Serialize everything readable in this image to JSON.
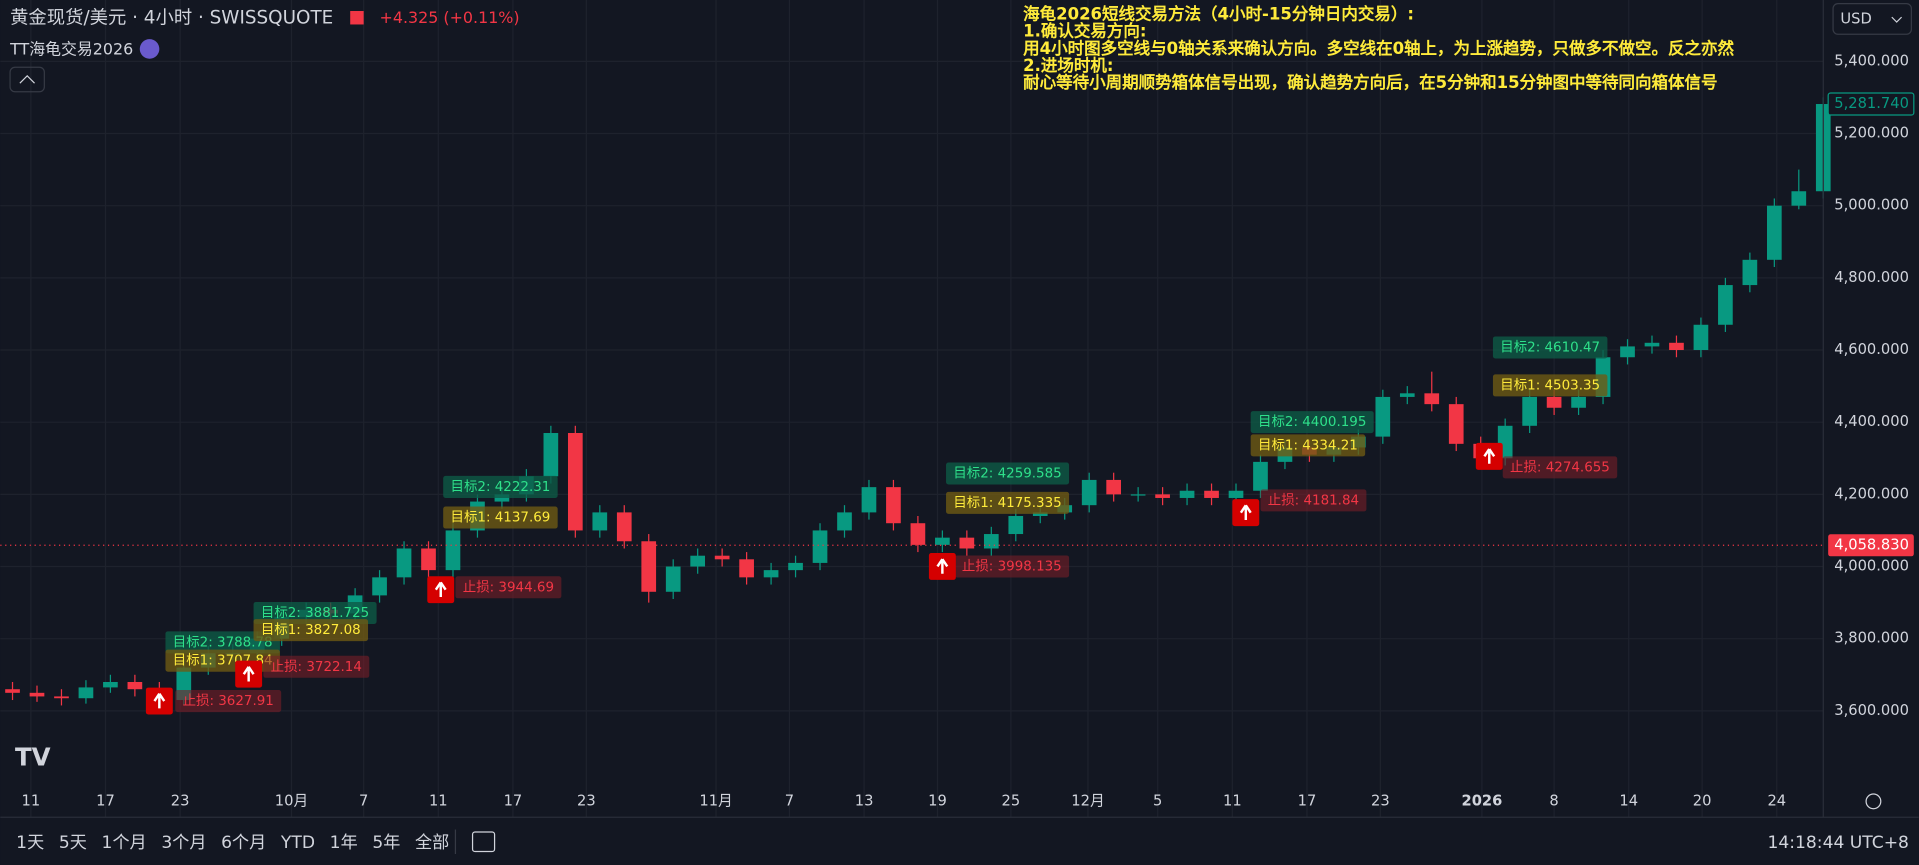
{
  "header": {
    "title": "黄金现货/美元 · 4小时 · SWISSQUOTE",
    "change": "+4.325 (+0.11%)",
    "indicator": "TT海龟交易2026",
    "currency": "USD"
  },
  "note": [
    "海龟2026短线交易方法（4小时-15分钟日内交易）:",
    "1.确认交易方向:",
    "用4小时图多空线与0轴关系来确认方向。多空线在0轴上，为上涨趋势，只做多不做空。反之亦然",
    "2.进场时机:",
    "耐心等待小周期顺势箱体信号出现，确认趋势方向后，在5分钟和15分钟图中等待同向箱体信号"
  ],
  "toolbar": {
    "ranges": [
      "1天",
      "5天",
      "1个月",
      "3个月",
      "6个月",
      "YTD",
      "1年",
      "5年",
      "全部"
    ],
    "time": "14:18:44 UTC+8"
  },
  "chart_data": {
    "type": "candlestick",
    "x": [
      1,
      3,
      5,
      7,
      9,
      11,
      13,
      15,
      17,
      19,
      21,
      23,
      25,
      27,
      29,
      31,
      33,
      35,
      37,
      39,
      41,
      43,
      45,
      47,
      49,
      51,
      53,
      55,
      57,
      59,
      61,
      63,
      65,
      67,
      69,
      71,
      73,
      75,
      77,
      79,
      81,
      83,
      85,
      87,
      89,
      91,
      93,
      95,
      97,
      99,
      101,
      103,
      105,
      107,
      109,
      111,
      113,
      115,
      117,
      119,
      121,
      123,
      125,
      127,
      129,
      131,
      133,
      135,
      137,
      139,
      141,
      143,
      145,
      147,
      149
    ],
    "open": [
      3660,
      3650,
      3640,
      3635,
      3665,
      3680,
      3660,
      3630,
      3720,
      3760,
      3760,
      3800,
      3860,
      3880,
      3870,
      3920,
      3970,
      4050,
      3990,
      4100,
      4180,
      4200,
      4250,
      4370,
      4100,
      4150,
      4070,
      3930,
      4000,
      4030,
      4020,
      3970,
      3990,
      4010,
      4100,
      4150,
      4220,
      4120,
      4060,
      4080,
      4050,
      4090,
      4140,
      4150,
      4170,
      4240,
      4200,
      4200,
      4190,
      4210,
      4190,
      4210,
      4290,
      4330,
      4310,
      4330,
      4360,
      4470,
      4480,
      4450,
      4340,
      4300,
      4390,
      4470,
      4440,
      4470,
      4580,
      4610,
      4620,
      4600,
      4670,
      4780,
      4850,
      5000,
      5040
    ],
    "high": [
      3680,
      3670,
      3660,
      3685,
      3700,
      3700,
      3680,
      3740,
      3780,
      3785,
      3820,
      3880,
      3900,
      3900,
      3940,
      3990,
      4070,
      4070,
      4120,
      4200,
      4220,
      4270,
      4390,
      4390,
      4170,
      4170,
      4090,
      4020,
      4050,
      4050,
      4040,
      4010,
      4030,
      4120,
      4170,
      4240,
      4240,
      4140,
      4100,
      4100,
      4110,
      4160,
      4170,
      4190,
      4260,
      4260,
      4220,
      4220,
      4230,
      4230,
      4230,
      4310,
      4350,
      4350,
      4350,
      4380,
      4490,
      4500,
      4540,
      4470,
      4360,
      4410,
      4490,
      4490,
      4490,
      4600,
      4630,
      4640,
      4640,
      4690,
      4800,
      4870,
      5020,
      5100,
      5300
    ],
    "low": [
      3630,
      3625,
      3615,
      3620,
      3650,
      3640,
      3610,
      3615,
      3700,
      3740,
      3740,
      3780,
      3840,
      3850,
      3850,
      3900,
      3950,
      3940,
      3970,
      4080,
      4160,
      4180,
      4230,
      4080,
      4080,
      4050,
      3900,
      3910,
      3980,
      4000,
      3950,
      3950,
      3970,
      3990,
      4080,
      4130,
      4100,
      4040,
      4040,
      4030,
      4030,
      4070,
      4120,
      4130,
      4150,
      4180,
      4180,
      4170,
      4170,
      4170,
      4170,
      4190,
      4270,
      4290,
      4290,
      4310,
      4340,
      4450,
      4430,
      4320,
      4270,
      4280,
      4370,
      4420,
      4420,
      4450,
      4560,
      4590,
      4580,
      4580,
      4650,
      4760,
      4830,
      4990,
      5020
    ],
    "close": [
      3650,
      3640,
      3635,
      3665,
      3680,
      3660,
      3630,
      3720,
      3760,
      3760,
      3800,
      3860,
      3880,
      3870,
      3920,
      3970,
      4050,
      3990,
      4100,
      4180,
      4200,
      4250,
      4370,
      4100,
      4150,
      4070,
      3930,
      4000,
      4030,
      4020,
      3970,
      3990,
      4010,
      4100,
      4150,
      4220,
      4120,
      4060,
      4080,
      4050,
      4090,
      4140,
      4150,
      4170,
      4240,
      4200,
      4200,
      4190,
      4210,
      4190,
      4210,
      4290,
      4330,
      4310,
      4330,
      4360,
      4470,
      4480,
      4450,
      4340,
      4300,
      4390,
      4470,
      4440,
      4470,
      4580,
      4610,
      4620,
      4600,
      4670,
      4780,
      4850,
      5000,
      5040,
      5281.74
    ],
    "last_label": "5,281.740",
    "up_color": "#089981",
    "down_color": "#f23645",
    "xlim": [
      0,
      149
    ],
    "xticks": [
      {
        "value": 2.5,
        "label": "11"
      },
      {
        "value": 8.6,
        "label": "17"
      },
      {
        "value": 14.7,
        "label": "23"
      },
      {
        "value": 23.8,
        "label": "10月"
      },
      {
        "value": 29.7,
        "label": "7"
      },
      {
        "value": 35.8,
        "label": "11"
      },
      {
        "value": 41.9,
        "label": "17"
      },
      {
        "value": 47.9,
        "label": "23"
      },
      {
        "value": 58.5,
        "label": "11月"
      },
      {
        "value": 64.5,
        "label": "7"
      },
      {
        "value": 70.6,
        "label": "13"
      },
      {
        "value": 76.6,
        "label": "19"
      },
      {
        "value": 82.6,
        "label": "25"
      },
      {
        "value": 88.9,
        "label": "12月"
      },
      {
        "value": 94.6,
        "label": "5"
      },
      {
        "value": 100.7,
        "label": "11"
      },
      {
        "value": 106.8,
        "label": "17"
      },
      {
        "value": 112.8,
        "label": "23"
      },
      {
        "value": 121.1,
        "label": "2026"
      },
      {
        "value": 127,
        "label": "8"
      },
      {
        "value": 133.1,
        "label": "14"
      },
      {
        "value": 139.1,
        "label": "20"
      },
      {
        "value": 145.2,
        "label": "24"
      }
    ],
    "ylim": [
      3400,
      5570
    ],
    "yticks": [
      {
        "value": 3600,
        "label": "3,600.000"
      },
      {
        "value": 3800,
        "label": "3,800.000"
      },
      {
        "value": 4000,
        "label": "4,000.000"
      },
      {
        "value": 4200,
        "label": "4,200.000"
      },
      {
        "value": 4400,
        "label": "4,400.000"
      },
      {
        "value": 4600,
        "label": "4,600.000"
      },
      {
        "value": 4800,
        "label": "4,800.000"
      },
      {
        "value": 5000,
        "label": "5,000.000"
      },
      {
        "value": 5200,
        "label": "5,200.000"
      },
      {
        "value": 5400,
        "label": "5,400.000"
      }
    ],
    "grid": true,
    "ref_line": {
      "value": 4058.83,
      "label": "4,058.830",
      "color": "#f23645"
    },
    "signals": [
      {
        "target2": "目标2: 3788.78",
        "target1": "目标1: 3707.84",
        "stop": "止损: 3627.91"
      },
      {
        "target2": "目标2: 3881.725",
        "target1": "目标1: 3827.08",
        "stop": "止损: 3722.14"
      },
      {
        "target2": "目标2: 4222.31",
        "target1": "目标1: 4137.69",
        "stop": "止损: 3944.69"
      },
      {
        "target2": "目标2: 4259.585",
        "target1": "目标1: 4175.335",
        "stop": "止损: 3998.135"
      },
      {
        "target2": "目标2: 4400.195",
        "target1": "目标1: 4334.21",
        "stop": "止损: 4181.84"
      },
      {
        "target2": "目标2: 4610.47",
        "target1": "目标1: 4503.35",
        "stop": "止损: 4274.655"
      }
    ]
  }
}
